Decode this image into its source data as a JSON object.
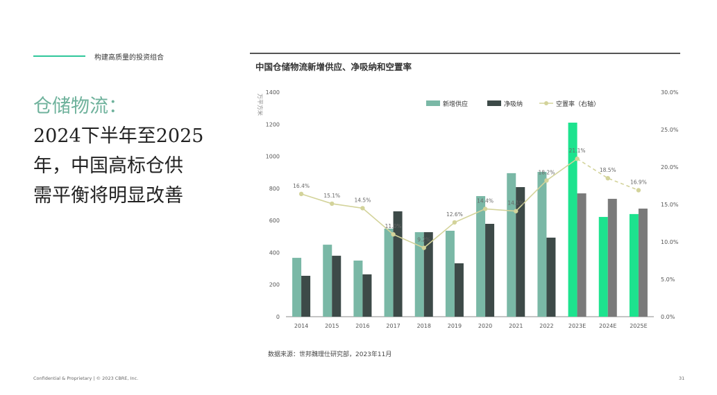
{
  "slide": {
    "section_label": "构建高质量的投资组合",
    "headline_accent": "仓储物流：",
    "headline_lines": [
      "2024下半年至2025",
      "年，中国高标仓供",
      "需平衡将明显改善"
    ],
    "footer": "Confidential & Proprietary | © 2023 CBRE, Inc.",
    "page_number": "31",
    "accent_color": "#2fc79a"
  },
  "chart_data": {
    "type": "bar",
    "title": "中国仓储物流新增供应、净吸纳和空置率",
    "source": "数据来源：世邦魏理仕研究部，2023年11月",
    "ylabel": "万平方米",
    "ylim": [
      0,
      1400
    ],
    "yticks": [
      0,
      200,
      400,
      600,
      800,
      1000,
      1200,
      1400
    ],
    "y2lim": [
      0,
      30
    ],
    "y2ticks": [
      "0.0%",
      "5.0%",
      "10.0%",
      "15.0%",
      "20.0%",
      "25.0%",
      "30.0%"
    ],
    "legend_placement": "top-right",
    "categories": [
      "2014",
      "2015",
      "2016",
      "2017",
      "2018",
      "2019",
      "2020",
      "2021",
      "2022",
      "2023E",
      "2024E",
      "2025E"
    ],
    "forecast_from": "2023E",
    "series": [
      {
        "name": "新增供应",
        "type": "bar",
        "color": "#7ab8a6",
        "forecast_color": "#1de38e",
        "values": [
          367,
          449,
          350,
          549,
          527,
          536,
          752,
          895,
          903,
          1210,
          622,
          640
        ]
      },
      {
        "name": "净吸纳",
        "type": "bar",
        "color": "#3d4a48",
        "forecast_color": "#7a7a7a",
        "values": [
          255,
          380,
          264,
          657,
          527,
          333,
          579,
          808,
          493,
          769,
          735,
          674
        ]
      },
      {
        "name": "空置率（右轴）",
        "type": "line",
        "axis": "right",
        "color": "#d3d39a",
        "values": [
          16.4,
          15.1,
          14.5,
          11.0,
          9.2,
          12.6,
          14.4,
          14.1,
          18.2,
          21.1,
          18.5,
          16.9
        ],
        "labels": [
          "16.4%",
          "15.1%",
          "14.5%",
          "11.0%",
          "9.2%",
          "12.6%",
          "14.4%",
          "14.1%",
          "18.2%",
          "21.1%",
          "18.5%",
          "16.9%"
        ]
      }
    ]
  }
}
